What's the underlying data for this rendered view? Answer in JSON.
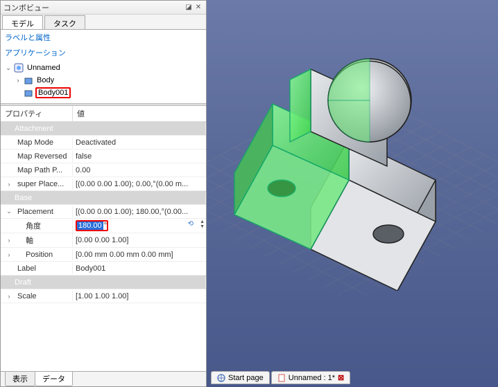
{
  "panel": {
    "title": "コンボビュー",
    "pin_icon": "◪",
    "close_icon": "✕"
  },
  "top_tabs": [
    {
      "label": "モデル",
      "active": true
    },
    {
      "label": "タスク",
      "active": false
    }
  ],
  "tree": {
    "section1": "ラベルと属性",
    "section2": "アプリケーション",
    "root": {
      "label": "Unnamed",
      "expanded": true,
      "children": [
        {
          "label": "Body",
          "icon_color": "#4a7fd0",
          "expanded": false,
          "highlighted": false
        },
        {
          "label": "Body001",
          "icon_color": "#4a7fd0",
          "expanded": false,
          "highlighted": true
        }
      ]
    }
  },
  "property_header": {
    "name_col": "プロパティ",
    "value_col": "値"
  },
  "properties": [
    {
      "type": "group",
      "label": "Attachment"
    },
    {
      "type": "prop",
      "name": "Map Mode",
      "value": "Deactivated",
      "indent": 1
    },
    {
      "type": "prop",
      "name": "Map Reversed",
      "value": "false",
      "indent": 1
    },
    {
      "type": "prop",
      "name": "Map Path P...",
      "value": "0.00",
      "indent": 1
    },
    {
      "type": "prop",
      "name": "super Place...",
      "value": "[(0.00 0.00 1.00); 0.00,°(0.00 m...",
      "indent": 1,
      "caret": "›"
    },
    {
      "type": "group",
      "label": "Base"
    },
    {
      "type": "prop",
      "name": "Placement",
      "value": "[(0.00 0.00 1.00); 180.00,°(0.00...",
      "indent": 1,
      "caret": "⌄"
    },
    {
      "type": "prop",
      "name": "角度",
      "value": "180.00",
      "value_suffix": "°",
      "indent": 2,
      "highlighted": true,
      "has_spinner": true
    },
    {
      "type": "prop",
      "name": "軸",
      "value": "[0.00 0.00 1.00]",
      "indent": 2,
      "caret": "›"
    },
    {
      "type": "prop",
      "name": "Position",
      "value": "[0.00 mm  0.00 mm  0.00 mm]",
      "indent": 2,
      "caret": "›"
    },
    {
      "type": "prop",
      "name": "Label",
      "value": "Body001",
      "indent": 1
    },
    {
      "type": "group",
      "label": "Draft"
    },
    {
      "type": "prop",
      "name": "Scale",
      "value": "[1.00 1.00 1.00]",
      "indent": 1,
      "caret": "›"
    }
  ],
  "bottom_tabs": [
    {
      "label": "表示",
      "active": false,
      "highlighted": false
    },
    {
      "label": "データ",
      "active": true,
      "highlighted": true
    }
  ],
  "viewport": {
    "bg_top": "#6b7aa8",
    "bg_bottom": "#48588a",
    "grid_color": "#888888",
    "part_gray": "#bfc3c8",
    "part_gray_dark": "#8e949c",
    "part_green": "#6df07a",
    "part_green_dark": "#3fc24d",
    "edge_color": "#222222"
  },
  "doc_tabs": [
    {
      "label": "Start page",
      "icon_color": "#5a7fc0",
      "closable": false
    },
    {
      "label": "Unnamed : 1*",
      "icon_color": "#d05a5a",
      "closable": true
    }
  ]
}
